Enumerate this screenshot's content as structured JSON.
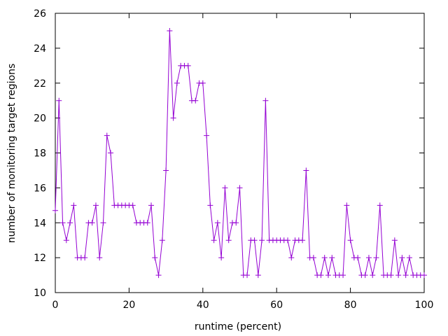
{
  "chart_data": {
    "type": "line",
    "title": "",
    "xlabel": "runtime (percent)",
    "ylabel": "number of monitoring target regions",
    "xlim": [
      0,
      100
    ],
    "ylim": [
      10,
      26
    ],
    "xticks": [
      0,
      20,
      40,
      60,
      80,
      100
    ],
    "yticks": [
      10,
      12,
      14,
      16,
      18,
      20,
      22,
      24,
      26
    ],
    "grid": false,
    "legend": "none",
    "series": [
      {
        "color": "#9400d3",
        "marker": "plus",
        "x": [
          0,
          1,
          2,
          3,
          4,
          5,
          6,
          7,
          8,
          9,
          10,
          11,
          12,
          13,
          14,
          15,
          16,
          17,
          18,
          19,
          20,
          21,
          22,
          23,
          24,
          25,
          26,
          27,
          28,
          29,
          30,
          31,
          32,
          33,
          34,
          35,
          36,
          37,
          38,
          39,
          40,
          41,
          42,
          43,
          44,
          45,
          46,
          47,
          48,
          49,
          50,
          51,
          52,
          53,
          54,
          55,
          56,
          57,
          58,
          59,
          60,
          61,
          62,
          63,
          64,
          65,
          66,
          67,
          68,
          69,
          70,
          71,
          72,
          73,
          74,
          75,
          76,
          77,
          78,
          79,
          80,
          81,
          82,
          83,
          84,
          85,
          86,
          87,
          88,
          89,
          90,
          91,
          92,
          93,
          94,
          95,
          96,
          97,
          98,
          99,
          100
        ],
        "y": [
          14.7,
          21,
          14,
          13,
          14,
          15,
          12,
          12,
          12,
          14,
          14,
          15,
          12,
          14,
          19,
          18,
          15,
          15,
          15,
          15,
          15,
          15,
          14,
          14,
          14,
          14,
          15,
          12,
          11,
          13,
          17,
          25,
          20,
          22,
          23,
          23,
          23,
          21,
          21,
          22,
          22,
          19,
          15,
          13,
          14,
          12,
          16,
          13,
          14,
          14,
          16,
          11,
          11,
          13,
          13,
          11,
          13,
          21,
          13,
          13,
          13,
          13,
          13,
          13,
          12,
          13,
          13,
          13,
          17,
          12,
          12,
          11,
          11,
          12,
          11,
          12,
          11,
          11,
          11,
          15,
          13,
          12,
          12,
          11,
          11,
          12,
          11,
          12,
          15,
          11,
          11,
          11,
          13,
          11,
          12,
          11,
          12,
          11,
          11,
          11,
          11
        ]
      }
    ]
  }
}
